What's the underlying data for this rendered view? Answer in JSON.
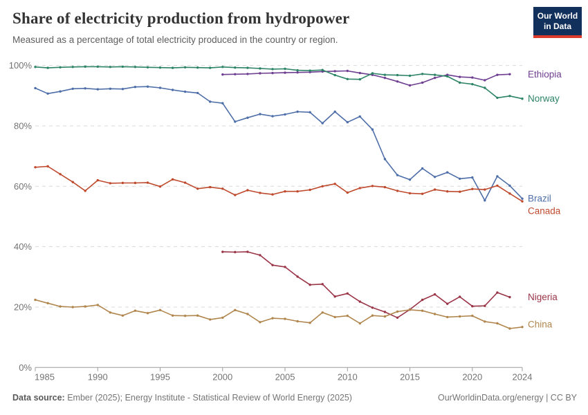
{
  "header": {
    "title": "Share of electricity production from hydropower",
    "subtitle": "Measured as a percentage of total electricity produced in the country or region."
  },
  "logo": {
    "line1": "Our World",
    "line2": "in Data",
    "bg_color": "#12305c",
    "accent_color": "#dc3a2b"
  },
  "footer": {
    "source_label": "Data source:",
    "source_text": " Ember (2025); Energy Institute - Statistical Review of World Energy (2025)",
    "credit": "OurWorldinData.org/energy | CC BY"
  },
  "chart_data": {
    "type": "line",
    "title": "Share of electricity production from hydropower",
    "unit": "%",
    "xlabel": "",
    "ylabel": "",
    "xlim": [
      1985,
      2024
    ],
    "ylim": [
      0,
      100
    ],
    "x_ticks": [
      1985,
      1990,
      1995,
      2000,
      2005,
      2010,
      2015,
      2020,
      2024
    ],
    "y_ticks": [
      0,
      20,
      40,
      60,
      80,
      100
    ],
    "grid": "horizontal-dashed",
    "legend": "end-of-line-labels",
    "axis_color": "#9c9c9c",
    "grid_color": "#d9d9d9",
    "tick_label_color": "#737373",
    "series": [
      {
        "name": "Ethiopia",
        "color": "#6d3e91",
        "start_year": 2000,
        "label_dy": 0,
        "values": [
          97.0,
          97.1,
          97.2,
          97.4,
          97.5,
          97.6,
          97.7,
          97.8,
          98.0,
          98.1,
          98.2,
          97.5,
          96.9,
          95.9,
          94.7,
          93.4,
          94.3,
          95.9,
          96.9,
          96.2,
          96.0,
          95.1,
          96.9,
          97.1
        ]
      },
      {
        "name": "Norway",
        "color": "#2c8465",
        "start_year": 1985,
        "label_dy": 0,
        "values": [
          99.5,
          99.2,
          99.4,
          99.5,
          99.6,
          99.6,
          99.5,
          99.6,
          99.5,
          99.4,
          99.3,
          99.2,
          99.4,
          99.3,
          99.2,
          99.5,
          99.3,
          99.2,
          99.0,
          98.8,
          98.9,
          98.4,
          98.3,
          98.5,
          96.8,
          95.5,
          95.4,
          97.4,
          96.9,
          96.8,
          96.6,
          97.2,
          96.9,
          96.4,
          94.3,
          93.8,
          92.6,
          89.3,
          89.9,
          89.0
        ]
      },
      {
        "name": "Brazil",
        "color": "#4d6ea8",
        "start_year": 1985,
        "label_dy": 0,
        "values": [
          92.5,
          90.7,
          91.4,
          92.3,
          92.4,
          92.1,
          92.3,
          92.2,
          92.9,
          93.0,
          92.6,
          91.9,
          91.3,
          90.9,
          88.0,
          87.5,
          81.4,
          82.7,
          83.9,
          83.2,
          83.8,
          84.7,
          84.5,
          80.9,
          84.7,
          81.2,
          83.1,
          78.8,
          69.0,
          63.7,
          62.2,
          65.9,
          63.1,
          64.6,
          62.5,
          62.9,
          55.3,
          63.3,
          60.2,
          55.9
        ]
      },
      {
        "name": "Canada",
        "color": "#bf492c",
        "start_year": 1985,
        "label_dy": 14,
        "values": [
          66.3,
          66.6,
          64.0,
          61.4,
          58.5,
          62.0,
          61.0,
          61.1,
          61.1,
          61.2,
          59.9,
          62.3,
          61.2,
          59.2,
          59.7,
          59.2,
          57.1,
          58.7,
          57.8,
          57.3,
          58.3,
          58.3,
          58.8,
          60.0,
          60.8,
          57.9,
          59.4,
          60.1,
          59.7,
          58.5,
          57.7,
          57.5,
          58.9,
          58.3,
          58.2,
          59.1,
          58.9,
          60.2,
          57.6,
          55.0
        ]
      },
      {
        "name": "Nigeria",
        "color": "#9a3447",
        "start_year": 2000,
        "label_dy": 0,
        "values": [
          38.3,
          38.2,
          38.3,
          37.2,
          33.9,
          33.3,
          30.1,
          27.4,
          27.6,
          23.5,
          24.5,
          21.8,
          19.8,
          18.4,
          16.5,
          19.2,
          22.4,
          24.2,
          21.1,
          23.4,
          20.3,
          20.4,
          24.8,
          23.3
        ]
      },
      {
        "name": "China",
        "color": "#b0864d",
        "start_year": 1985,
        "label_dy": -4,
        "values": [
          22.4,
          21.3,
          20.2,
          20.0,
          20.2,
          20.7,
          18.2,
          17.2,
          18.8,
          18.0,
          19.0,
          17.2,
          17.1,
          17.2,
          15.9,
          16.5,
          19.0,
          17.7,
          15.0,
          16.3,
          16.1,
          15.3,
          14.8,
          18.2,
          16.7,
          17.1,
          14.6,
          17.2,
          16.9,
          18.5,
          19.1,
          18.8,
          17.7,
          16.7,
          16.9,
          17.1,
          15.2,
          14.6,
          12.9,
          13.4
        ]
      }
    ]
  }
}
